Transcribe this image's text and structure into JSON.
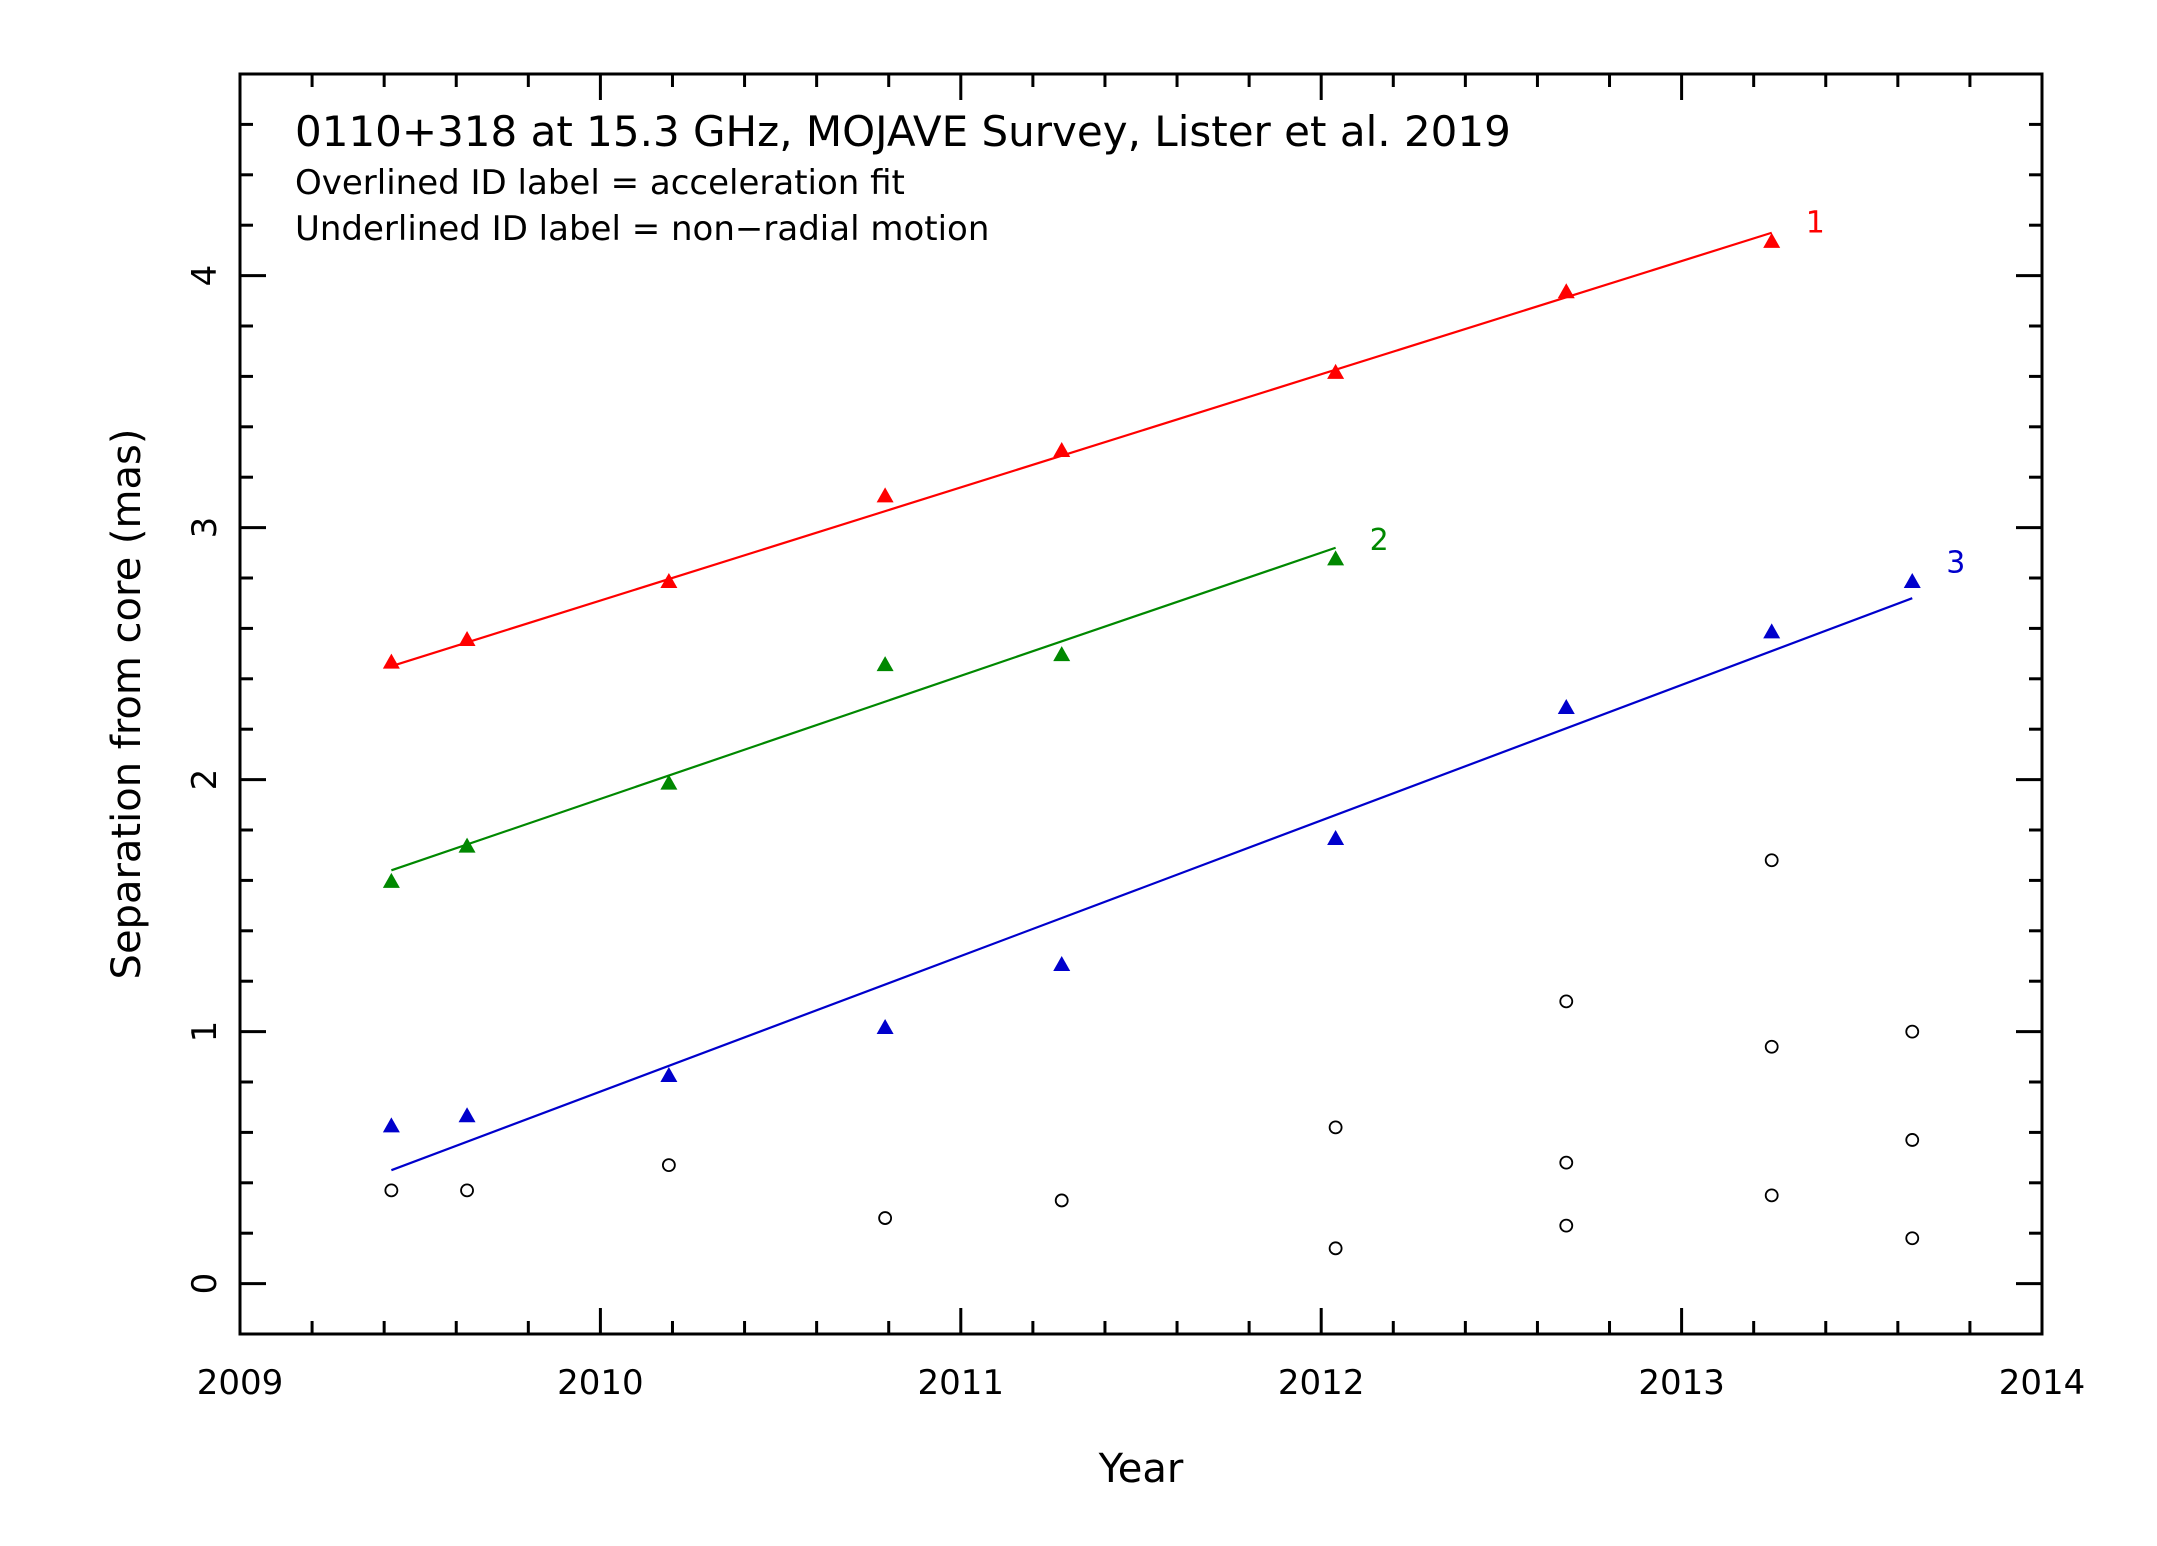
{
  "chart_data": {
    "type": "scatter",
    "title": "0110+318 at 15.3 GHz, MOJAVE Survey, Lister et al. 2019",
    "notes": [
      "Overlined ID label = acceleration fit",
      "Underlined ID label = non−radial motion"
    ],
    "xlabel": "Year",
    "ylabel": "Separation from core (mas)",
    "xlim": [
      2009,
      2014
    ],
    "ylim": [
      -0.2,
      4.8
    ],
    "x_ticks": [
      "2009",
      "2010",
      "2011",
      "2012",
      "2013",
      "2014"
    ],
    "y_ticks": [
      "0",
      "1",
      "2",
      "3",
      "4"
    ],
    "series": [
      {
        "name": "1",
        "color": "#ff0000",
        "marker": "triangle",
        "x": [
          2009.42,
          2009.63,
          2010.19,
          2010.79,
          2011.28,
          2012.04,
          2012.68,
          2013.25
        ],
        "y": [
          2.47,
          2.56,
          2.79,
          3.13,
          3.31,
          3.62,
          3.94,
          4.14
        ],
        "fit": {
          "x": [
            2009.42,
            2013.25
          ],
          "y": [
            2.45,
            4.17
          ]
        }
      },
      {
        "name": "2",
        "color": "#008800",
        "marker": "triangle",
        "x": [
          2009.42,
          2009.63,
          2010.19,
          2010.79,
          2011.28,
          2012.04
        ],
        "y": [
          1.6,
          1.74,
          1.99,
          2.46,
          2.5,
          2.88
        ],
        "fit": {
          "x": [
            2009.42,
            2012.04
          ],
          "y": [
            1.64,
            2.92
          ]
        }
      },
      {
        "name": "3",
        "color": "#0000cc",
        "marker": "triangle",
        "x": [
          2009.42,
          2009.63,
          2010.19,
          2010.79,
          2011.28,
          2012.04,
          2012.68,
          2013.25,
          2013.64
        ],
        "y": [
          0.63,
          0.67,
          0.83,
          1.02,
          1.27,
          1.77,
          2.29,
          2.59,
          2.79
        ],
        "fit": {
          "x": [
            2009.42,
            2013.64
          ],
          "y": [
            0.45,
            2.72
          ]
        }
      },
      {
        "name": "",
        "color": "#000000",
        "marker": "open-circle",
        "x": [
          2009.42,
          2009.63,
          2010.19,
          2010.79,
          2011.28,
          2012.04,
          2012.04,
          2012.68,
          2012.68,
          2012.68,
          2013.25,
          2013.25,
          2013.25,
          2013.64,
          2013.64,
          2013.64
        ],
        "y": [
          0.37,
          0.37,
          0.47,
          0.26,
          0.33,
          0.62,
          0.14,
          1.12,
          0.48,
          0.23,
          1.68,
          0.94,
          0.35,
          1.0,
          0.57,
          0.18
        ]
      }
    ]
  }
}
